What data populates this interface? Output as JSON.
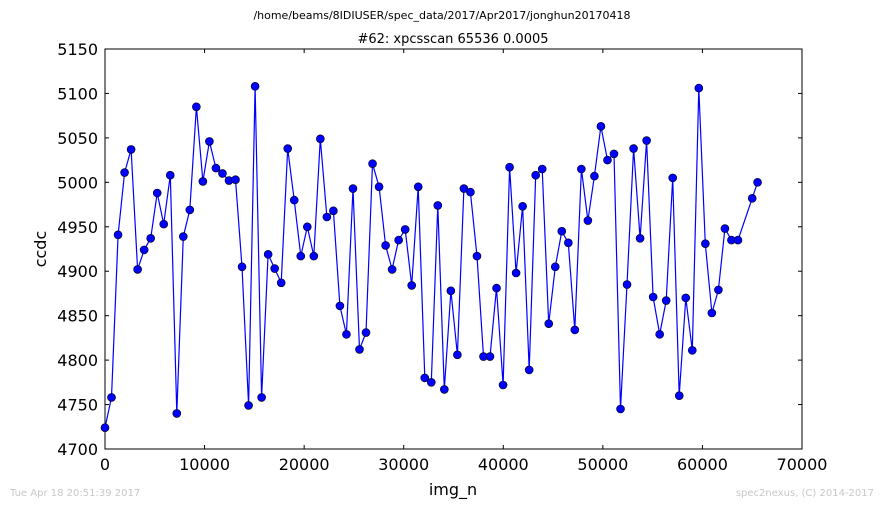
{
  "chart_data": {
    "type": "line",
    "suptitle": "/home/beams/8IDIUSER/spec_data/2017/Apr2017/jonghun20170418",
    "title": "#62: xpcsscan 65536 0.0005",
    "xlabel": "img_n",
    "ylabel": "ccdc",
    "xlim": [
      0,
      70000
    ],
    "ylim": [
      4700,
      5150
    ],
    "xticks": [
      0,
      10000,
      20000,
      30000,
      40000,
      50000,
      60000,
      70000
    ],
    "yticks": [
      4700,
      4750,
      4800,
      4850,
      4900,
      4950,
      5000,
      5050,
      5100,
      5150
    ],
    "grid": false,
    "legend": "none",
    "marker": "circle",
    "color": "#0000ff",
    "x": [
      0,
      655,
      1311,
      1966,
      2621,
      3277,
      3932,
      4588,
      5243,
      5898,
      6554,
      7209,
      7864,
      8520,
      9175,
      9830,
      10486,
      11141,
      11796,
      12452,
      13107,
      13763,
      14418,
      15073,
      15729,
      16384,
      17039,
      17695,
      18350,
      19005,
      19661,
      20316,
      20972,
      21627,
      22282,
      22938,
      23593,
      24248,
      24904,
      25559,
      26214,
      26870,
      27525,
      28181,
      28836,
      29491,
      30147,
      30802,
      31457,
      32113,
      32768,
      33423,
      34079,
      34734,
      35389,
      36045,
      36700,
      37356,
      38011,
      38666,
      39322,
      39977,
      40632,
      41288,
      41943,
      42598,
      43254,
      43909,
      44565,
      45220,
      45875,
      46531,
      47186,
      47841,
      48497,
      49152,
      49807,
      50463,
      51118,
      51774,
      52429,
      53084,
      53740,
      54395,
      55050,
      55706,
      56361,
      57016,
      57672,
      58327,
      58982,
      59638,
      60293,
      60948,
      61604,
      62259,
      62915,
      63570,
      65000,
      65536
    ],
    "y": [
      4724,
      4758,
      4941,
      5011,
      5037,
      4902,
      4924,
      4937,
      4988,
      4953,
      5008,
      4740,
      4939,
      4969,
      5085,
      5001,
      5046,
      5016,
      5010,
      5002,
      5003,
      4905,
      4749,
      5108,
      4758,
      4919,
      4903,
      4887,
      5038,
      4980,
      4917,
      4950,
      4917,
      5049,
      4961,
      4968,
      4861,
      4829,
      4993,
      4812,
      4831,
      5021,
      4995,
      4929,
      4902,
      4935,
      4947,
      4884,
      4995,
      4780,
      4775,
      4974,
      4767,
      4878,
      4806,
      4993,
      4989,
      4917,
      4804,
      4804,
      4881,
      4772,
      5017,
      4898,
      4973,
      4789,
      5008,
      5015,
      4841,
      4905,
      4945,
      4932,
      4834,
      5015,
      4957,
      5007,
      5063,
      5025,
      5032,
      4745,
      4885,
      5038,
      4937,
      5047,
      4871,
      4829,
      4867,
      5005,
      4760,
      4870,
      4811,
      5106,
      4931,
      4853,
      4879,
      4948,
      4935,
      4935,
      4982,
      5000
    ]
  },
  "footer": {
    "timestamp": "Tue Apr 18 20:51:39 2017",
    "credit": "spec2nexus, (C) 2014-2017"
  }
}
